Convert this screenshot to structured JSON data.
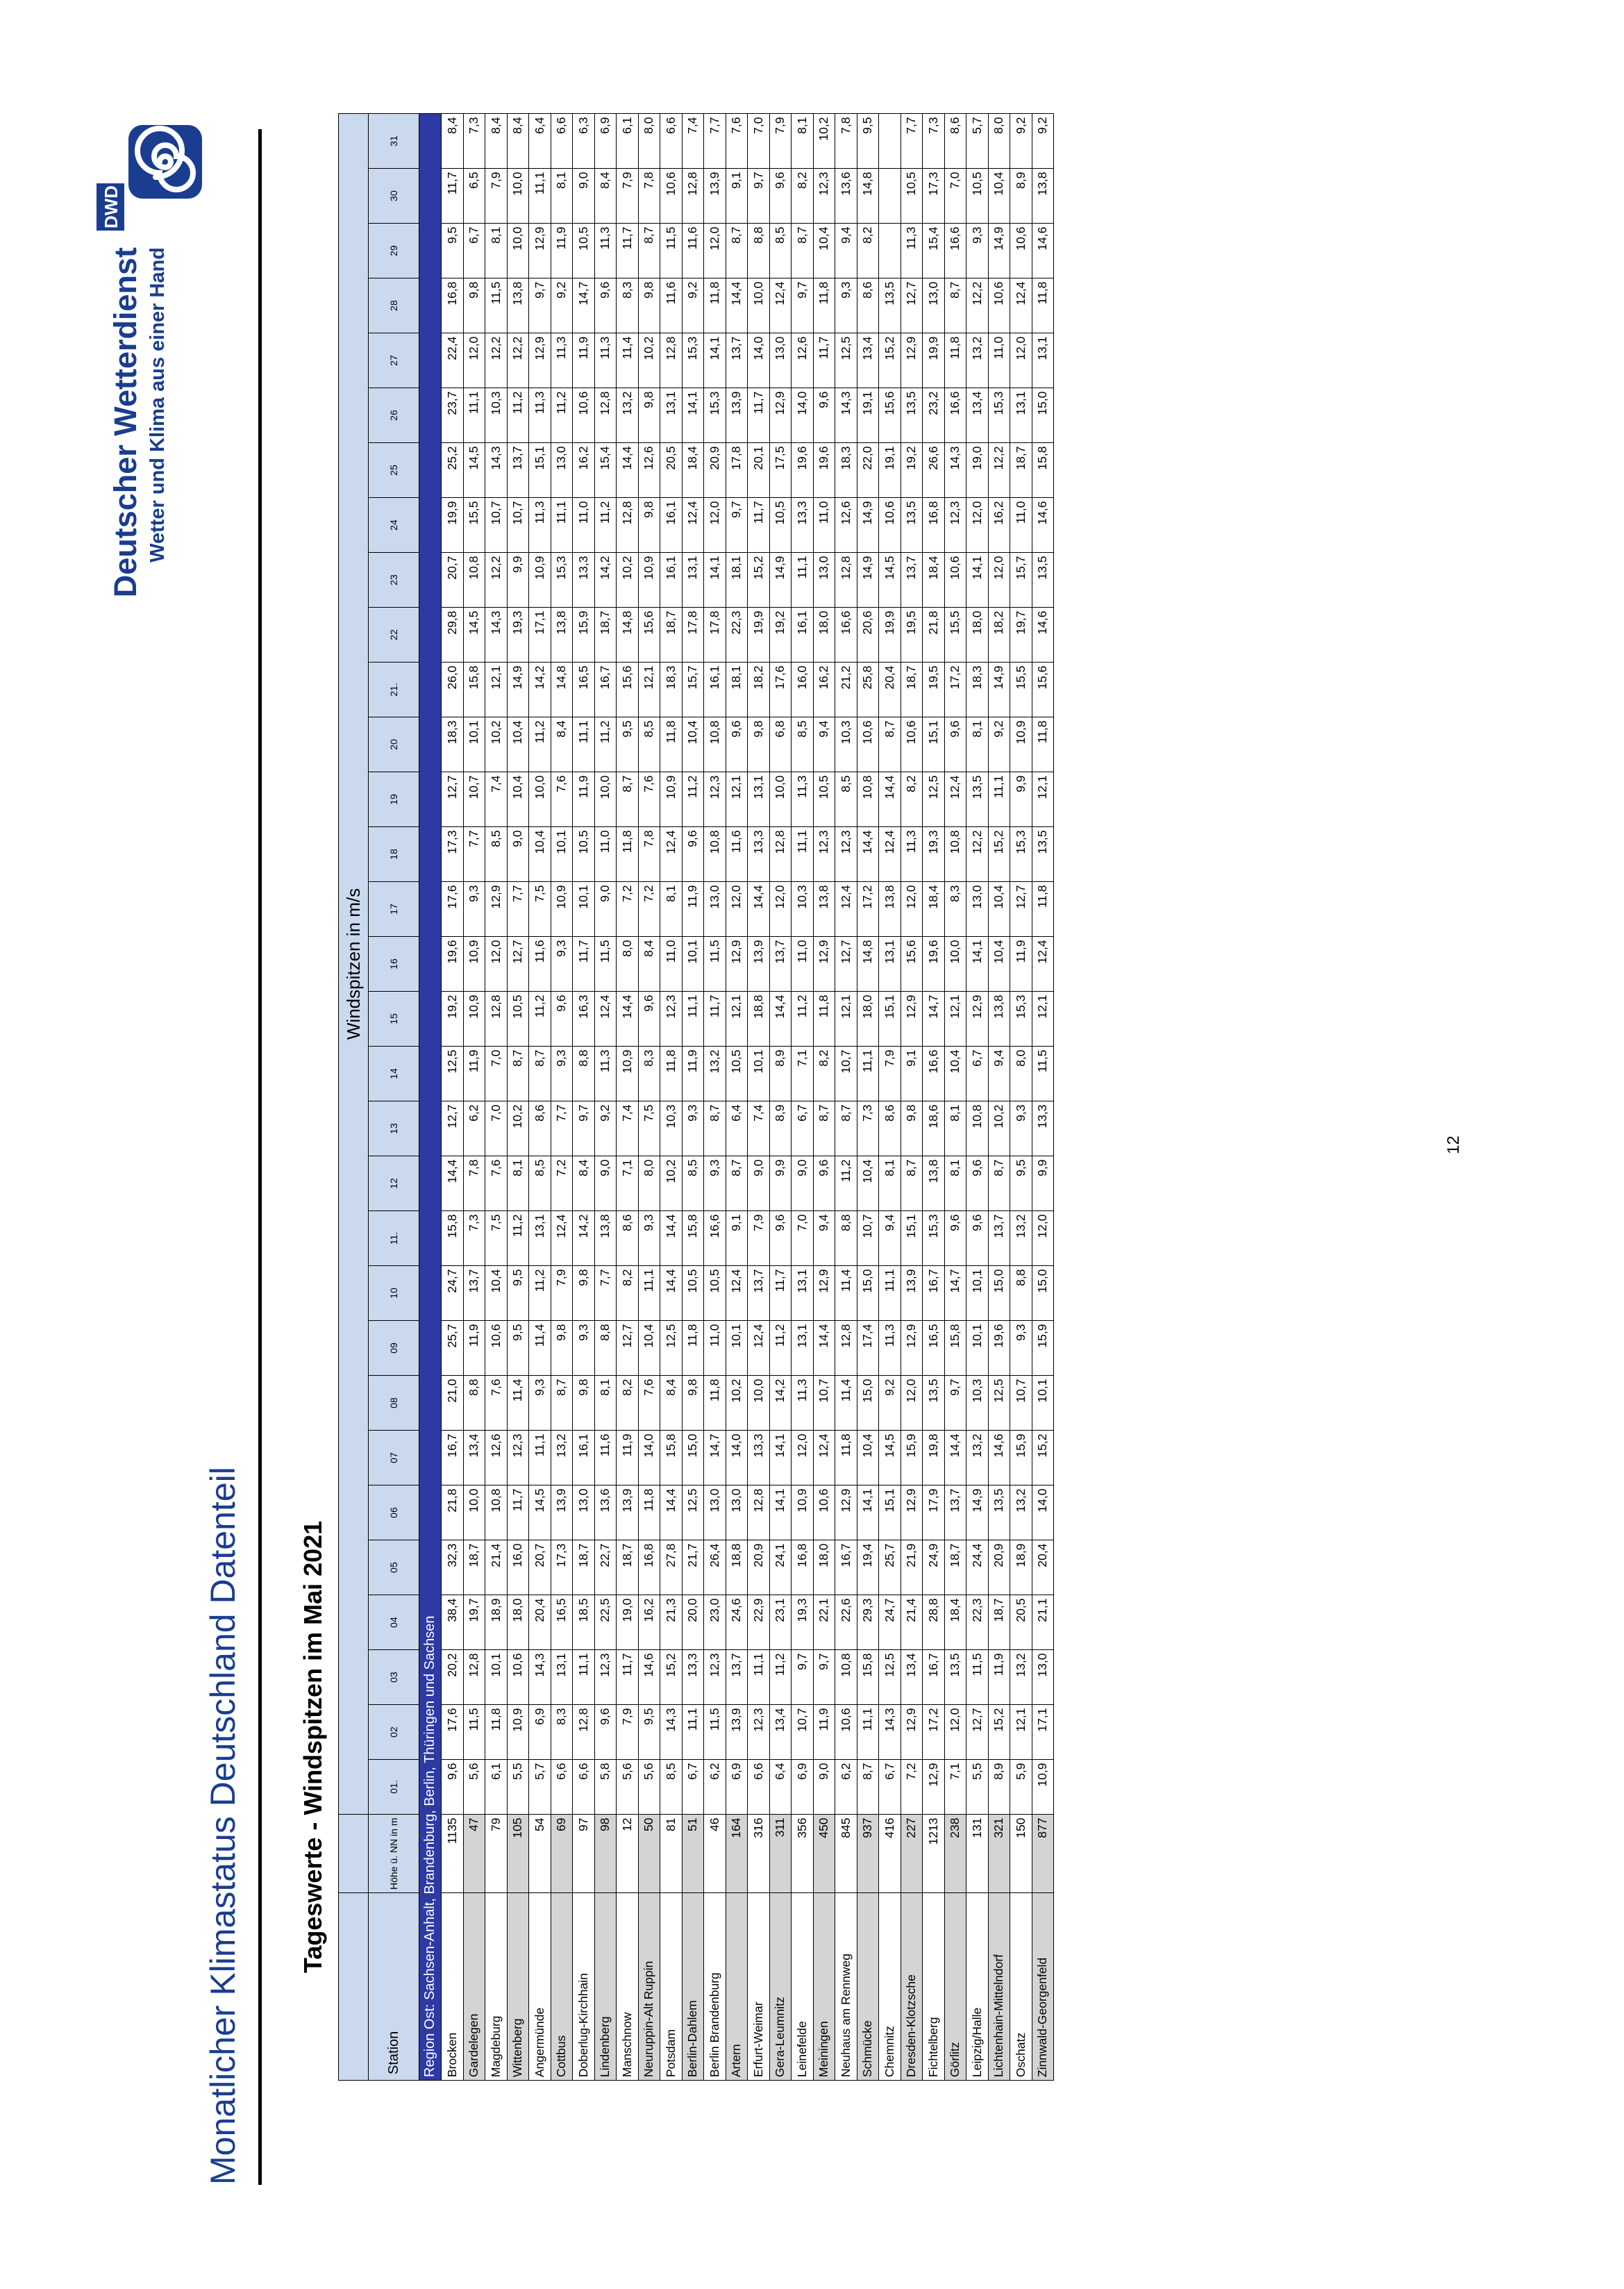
{
  "header": {
    "title": "Monatlicher Klimastatus Deutschland Datenteil",
    "brand_name": "Deutscher Wetterdienst",
    "brand_slogan": "Wetter und Klima aus einer Hand",
    "logo_text": "DWD",
    "brand_color": "#1a3d8f"
  },
  "table_heading": "Tageswerte - Windspitzen im Mai 2021",
  "page_number": "12",
  "table": {
    "group_header": "Windspitzen in m/s",
    "station_label": "Station",
    "height_label": "Höhe ü. NN in m",
    "day_labels": [
      "01.",
      "02",
      "03",
      "04",
      "05",
      "06",
      "07",
      "08",
      "09",
      "10",
      "11.",
      "12",
      "13",
      "14",
      "15",
      "16",
      "17",
      "18",
      "19",
      "20",
      "21.",
      "22",
      "23",
      "24",
      "25",
      "26",
      "27",
      "28",
      "29",
      "30",
      "31"
    ],
    "region": "Region Ost: Sachsen-Anhalt, Brandenburg, Berlin, Thüringen und Sachsen",
    "region_color": "#2e3aa3",
    "rows": [
      {
        "station": "Brocken",
        "height": "1135",
        "values": [
          "9,6",
          "17,6",
          "20,2",
          "38,4",
          "32,3",
          "21,8",
          "16,7",
          "21,0",
          "25,7",
          "24,7",
          "15,8",
          "14,4",
          "12,7",
          "12,5",
          "19,2",
          "19,6",
          "17,6",
          "17,3",
          "12,7",
          "18,3",
          "26,0",
          "29,8",
          "20,7",
          "19,9",
          "25,2",
          "23,7",
          "22,4",
          "16,8",
          "9,5",
          "11,7",
          "8,4"
        ]
      },
      {
        "station": "Gardelegen",
        "height": "47",
        "values": [
          "5,6",
          "11,5",
          "12,8",
          "19,7",
          "18,7",
          "10,0",
          "13,4",
          "8,8",
          "11,9",
          "13,7",
          "7,3",
          "7,8",
          "6,2",
          "11,9",
          "10,9",
          "10,9",
          "9,3",
          "7,7",
          "10,7",
          "10,1",
          "15,8",
          "14,5",
          "10,8",
          "15,5",
          "14,5",
          "11,1",
          "12,0",
          "9,8",
          "6,7",
          "6,5",
          "7,3"
        ]
      },
      {
        "station": "Magdeburg",
        "height": "79",
        "values": [
          "6,1",
          "11,8",
          "10,1",
          "18,9",
          "21,4",
          "10,8",
          "12,6",
          "7,6",
          "10,6",
          "10,4",
          "7,5",
          "7,6",
          "7,0",
          "7,0",
          "12,8",
          "12,0",
          "12,9",
          "8,5",
          "7,4",
          "10,2",
          "12,1",
          "14,3",
          "12,2",
          "10,7",
          "14,3",
          "10,3",
          "12,2",
          "11,5",
          "8,1",
          "7,9",
          "8,4"
        ]
      },
      {
        "station": "Wittenberg",
        "height": "105",
        "values": [
          "5,5",
          "10,9",
          "10,6",
          "18,0",
          "16,0",
          "11,7",
          "12,3",
          "11,4",
          "9,5",
          "9,5",
          "11,2",
          "8,1",
          "10,2",
          "8,7",
          "10,5",
          "12,7",
          "7,7",
          "9,0",
          "10,4",
          "10,4",
          "14,9",
          "19,3",
          "9,9",
          "10,7",
          "13,7",
          "11,2",
          "12,2",
          "13,8",
          "10,0",
          "10,0",
          "8,4"
        ]
      },
      {
        "station": "Angermünde",
        "height": "54",
        "values": [
          "5,7",
          "6,9",
          "14,3",
          "20,4",
          "20,7",
          "14,5",
          "11,1",
          "9,3",
          "11,4",
          "11,2",
          "13,1",
          "8,5",
          "8,6",
          "8,7",
          "11,2",
          "11,6",
          "7,5",
          "10,4",
          "10,0",
          "11,2",
          "14,2",
          "17,1",
          "10,9",
          "11,3",
          "15,1",
          "11,3",
          "12,9",
          "9,7",
          "12,9",
          "11,1",
          "6,4"
        ]
      },
      {
        "station": "Cottbus",
        "height": "69",
        "values": [
          "6,6",
          "8,3",
          "13,1",
          "16,5",
          "17,3",
          "13,9",
          "13,2",
          "8,7",
          "9,8",
          "7,9",
          "12,4",
          "7,2",
          "7,7",
          "9,3",
          "9,6",
          "9,3",
          "10,9",
          "10,1",
          "7,6",
          "8,4",
          "14,8",
          "13,8",
          "15,3",
          "11,1",
          "13,0",
          "11,2",
          "11,3",
          "9,2",
          "11,9",
          "8,1",
          "6,6"
        ]
      },
      {
        "station": "Doberlug-Kirchhain",
        "height": "97",
        "values": [
          "6,6",
          "12,8",
          "11,1",
          "18,5",
          "18,7",
          "13,0",
          "16,1",
          "9,8",
          "9,3",
          "9,8",
          "14,2",
          "8,4",
          "9,7",
          "8,8",
          "16,3",
          "11,7",
          "10,1",
          "10,5",
          "11,9",
          "11,1",
          "16,5",
          "15,9",
          "13,3",
          "11,0",
          "16,2",
          "10,6",
          "11,9",
          "14,7",
          "10,5",
          "9,0",
          "6,3"
        ]
      },
      {
        "station": "Lindenberg",
        "height": "98",
        "values": [
          "5,8",
          "9,6",
          "12,3",
          "22,5",
          "22,7",
          "13,6",
          "11,6",
          "8,1",
          "8,8",
          "7,7",
          "13,8",
          "9,0",
          "9,2",
          "11,3",
          "12,4",
          "11,5",
          "9,0",
          "11,0",
          "10,0",
          "11,2",
          "16,7",
          "18,7",
          "14,2",
          "11,2",
          "15,4",
          "12,8",
          "11,3",
          "9,6",
          "11,3",
          "8,4",
          "6,9"
        ]
      },
      {
        "station": "Manschnow",
        "height": "12",
        "values": [
          "5,6",
          "7,9",
          "11,7",
          "19,0",
          "18,7",
          "13,9",
          "11,9",
          "8,2",
          "12,7",
          "8,2",
          "8,6",
          "7,1",
          "7,4",
          "10,9",
          "14,4",
          "8,0",
          "7,2",
          "11,8",
          "8,7",
          "9,5",
          "15,6",
          "14,8",
          "10,2",
          "12,8",
          "14,4",
          "13,2",
          "11,4",
          "8,3",
          "11,7",
          "7,9",
          "6,1"
        ]
      },
      {
        "station": "Neuruppin-Alt Ruppin",
        "height": "50",
        "values": [
          "5,6",
          "9,5",
          "14,6",
          "16,2",
          "16,8",
          "11,8",
          "14,0",
          "7,6",
          "10,4",
          "11,1",
          "9,3",
          "8,0",
          "7,5",
          "8,3",
          "9,6",
          "8,4",
          "7,2",
          "7,8",
          "7,6",
          "8,5",
          "12,1",
          "15,6",
          "10,9",
          "9,8",
          "12,6",
          "9,8",
          "10,2",
          "9,8",
          "8,7",
          "7,8",
          "8,0"
        ]
      },
      {
        "station": "Potsdam",
        "height": "81",
        "values": [
          "8,5",
          "14,3",
          "15,2",
          "21,3",
          "27,8",
          "14,4",
          "15,8",
          "8,4",
          "12,5",
          "14,4",
          "14,4",
          "10,2",
          "10,3",
          "11,8",
          "12,3",
          "11,0",
          "8,1",
          "12,4",
          "10,9",
          "11,8",
          "18,3",
          "18,7",
          "16,1",
          "16,1",
          "20,5",
          "13,1",
          "12,8",
          "11,6",
          "11,5",
          "10,6",
          "6,6"
        ]
      },
      {
        "station": "Berlin-Dahlem",
        "height": "51",
        "values": [
          "6,7",
          "11,1",
          "13,3",
          "20,0",
          "21,7",
          "12,5",
          "15,0",
          "9,8",
          "11,8",
          "10,5",
          "15,8",
          "8,5",
          "9,3",
          "11,9",
          "11,1",
          "10,1",
          "11,9",
          "9,6",
          "11,2",
          "10,4",
          "15,7",
          "17,8",
          "13,1",
          "12,4",
          "18,4",
          "14,1",
          "15,3",
          "9,2",
          "11,6",
          "12,8",
          "7,4"
        ]
      },
      {
        "station": "Berlin Brandenburg",
        "height": "46",
        "values": [
          "6,2",
          "11,5",
          "12,3",
          "23,0",
          "26,4",
          "13,0",
          "14,7",
          "11,8",
          "11,0",
          "10,5",
          "16,6",
          "9,3",
          "8,7",
          "13,2",
          "11,7",
          "11,5",
          "13,0",
          "10,8",
          "12,3",
          "10,8",
          "16,1",
          "17,8",
          "14,1",
          "12,0",
          "20,9",
          "15,3",
          "14,1",
          "11,8",
          "12,0",
          "13,9",
          "7,7"
        ]
      },
      {
        "station": "Artern",
        "height": "164",
        "values": [
          "6,9",
          "13,9",
          "13,7",
          "24,6",
          "18,8",
          "13,0",
          "14,0",
          "10,2",
          "10,1",
          "12,4",
          "9,1",
          "8,7",
          "6,4",
          "10,5",
          "12,1",
          "12,9",
          "12,0",
          "11,6",
          "12,1",
          "9,6",
          "18,1",
          "22,3",
          "18,1",
          "9,7",
          "17,8",
          "13,9",
          "13,7",
          "14,4",
          "8,7",
          "9,1",
          "7,6"
        ]
      },
      {
        "station": "Erfurt-Weimar",
        "height": "316",
        "values": [
          "6,6",
          "12,3",
          "11,1",
          "22,9",
          "20,9",
          "12,8",
          "13,3",
          "10,0",
          "12,4",
          "13,7",
          "7,9",
          "9,0",
          "7,4",
          "10,1",
          "18,8",
          "13,9",
          "14,4",
          "13,3",
          "13,1",
          "9,8",
          "18,2",
          "19,9",
          "15,2",
          "11,7",
          "20,1",
          "11,7",
          "14,0",
          "10,0",
          "8,8",
          "9,7",
          "7,0"
        ]
      },
      {
        "station": "Gera-Leumnitz",
        "height": "311",
        "values": [
          "6,4",
          "13,4",
          "11,2",
          "23,1",
          "24,1",
          "14,1",
          "14,1",
          "14,2",
          "11,2",
          "11,7",
          "9,6",
          "9,9",
          "8,9",
          "8,9",
          "14,4",
          "13,7",
          "12,0",
          "12,8",
          "10,0",
          "6,8",
          "17,6",
          "19,2",
          "14,9",
          "10,5",
          "17,5",
          "12,9",
          "13,0",
          "12,4",
          "8,5",
          "9,6",
          "7,9"
        ]
      },
      {
        "station": "Leinefelde",
        "height": "356",
        "values": [
          "6,9",
          "10,7",
          "9,7",
          "19,3",
          "16,8",
          "10,9",
          "12,0",
          "11,3",
          "13,1",
          "13,1",
          "7,0",
          "9,0",
          "6,7",
          "7,1",
          "11,2",
          "11,0",
          "10,3",
          "11,1",
          "11,3",
          "8,5",
          "16,0",
          "16,1",
          "11,1",
          "13,3",
          "19,6",
          "14,0",
          "12,6",
          "9,7",
          "8,7",
          "8,2",
          "8,1"
        ]
      },
      {
        "station": "Meiningen",
        "height": "450",
        "values": [
          "9,0",
          "11,9",
          "9,7",
          "22,1",
          "18,0",
          "10,6",
          "12,4",
          "10,7",
          "14,4",
          "12,9",
          "9,4",
          "9,6",
          "8,7",
          "8,2",
          "11,8",
          "12,9",
          "13,8",
          "12,3",
          "10,5",
          "9,4",
          "16,2",
          "18,0",
          "13,0",
          "11,0",
          "19,6",
          "9,6",
          "11,7",
          "11,8",
          "10,4",
          "12,3",
          "10,2"
        ]
      },
      {
        "station": "Neuhaus am Rennweg",
        "height": "845",
        "values": [
          "6,2",
          "10,6",
          "10,8",
          "22,6",
          "16,7",
          "12,9",
          "11,8",
          "11,4",
          "12,8",
          "11,4",
          "8,8",
          "11,2",
          "8,7",
          "10,7",
          "12,1",
          "12,7",
          "12,4",
          "12,3",
          "8,5",
          "10,3",
          "21,2",
          "16,6",
          "12,8",
          "12,6",
          "18,3",
          "14,3",
          "12,5",
          "9,3",
          "9,4",
          "13,6",
          "7,8"
        ]
      },
      {
        "station": "Schmücke",
        "height": "937",
        "values": [
          "8,7",
          "11,1",
          "15,8",
          "29,3",
          "19,4",
          "14,1",
          "10,4",
          "15,0",
          "17,4",
          "15,0",
          "10,7",
          "10,4",
          "7,3",
          "11,1",
          "18,0",
          "14,8",
          "17,2",
          "14,4",
          "10,8",
          "10,6",
          "25,8",
          "20,6",
          "14,9",
          "14,9",
          "22,0",
          "19,1",
          "13,4",
          "8,6",
          "8,2",
          "14,8",
          "9,5"
        ]
      },
      {
        "station": "Chemnitz",
        "height": "416",
        "values": [
          "6,7",
          "14,3",
          "12,5",
          "24,7",
          "25,7",
          "15,1",
          "14,5",
          "9,2",
          "11,3",
          "11,1",
          "9,4",
          "8,1",
          "8,6",
          "7,9",
          "15,1",
          "13,1",
          "13,8",
          "12,4",
          "14,4",
          "8,7",
          "20,4",
          "19,9",
          "14,5",
          "10,6",
          "19,1",
          "15,6",
          "15,2",
          "13,5",
          "",
          "",
          ""
        ]
      },
      {
        "station": "Dresden-Klotzsche",
        "height": "227",
        "values": [
          "7,2",
          "12,9",
          "13,4",
          "21,4",
          "21,9",
          "12,9",
          "15,9",
          "12,0",
          "12,9",
          "13,9",
          "15,1",
          "8,7",
          "9,8",
          "9,1",
          "12,9",
          "15,6",
          "12,0",
          "11,3",
          "8,2",
          "10,6",
          "18,7",
          "19,5",
          "13,7",
          "13,5",
          "19,2",
          "13,5",
          "12,9",
          "12,7",
          "11,3",
          "10,5",
          "7,7"
        ]
      },
      {
        "station": "Fichtelberg",
        "height": "1213",
        "values": [
          "12,9",
          "17,2",
          "16,7",
          "28,8",
          "24,9",
          "17,9",
          "19,8",
          "13,5",
          "16,5",
          "16,7",
          "15,3",
          "13,8",
          "18,6",
          "16,6",
          "14,7",
          "19,6",
          "18,4",
          "19,3",
          "12,5",
          "15,1",
          "19,5",
          "21,8",
          "18,4",
          "16,8",
          "26,6",
          "23,2",
          "19,9",
          "13,0",
          "15,4",
          "17,3",
          "7,3"
        ]
      },
      {
        "station": "Görlitz",
        "height": "238",
        "values": [
          "7,1",
          "12,0",
          "13,5",
          "18,4",
          "18,7",
          "13,7",
          "14,4",
          "9,7",
          "15,8",
          "14,7",
          "9,6",
          "8,1",
          "8,1",
          "10,4",
          "12,1",
          "10,0",
          "8,3",
          "10,8",
          "12,4",
          "9,6",
          "17,2",
          "15,5",
          "10,6",
          "12,3",
          "14,3",
          "16,6",
          "11,8",
          "8,7",
          "16,6",
          "7,0",
          "8,6"
        ]
      },
      {
        "station": "Leipzig/Halle",
        "height": "131",
        "values": [
          "5,5",
          "12,7",
          "11,5",
          "22,3",
          "24,4",
          "14,9",
          "13,2",
          "10,3",
          "10,1",
          "10,1",
          "9,6",
          "9,6",
          "10,8",
          "6,7",
          "12,9",
          "14,1",
          "13,0",
          "12,2",
          "13,5",
          "8,1",
          "18,3",
          "18,0",
          "14,1",
          "12,0",
          "19,0",
          "13,4",
          "13,2",
          "12,2",
          "9,3",
          "10,5",
          "5,7"
        ]
      },
      {
        "station": "Lichtenhain-Mittelndorf",
        "height": "321",
        "values": [
          "8,9",
          "15,2",
          "11,9",
          "18,7",
          "20,9",
          "13,5",
          "14,6",
          "12,5",
          "19,6",
          "15,0",
          "13,7",
          "8,7",
          "10,2",
          "9,4",
          "13,8",
          "10,4",
          "10,4",
          "15,2",
          "11,1",
          "9,2",
          "14,9",
          "18,2",
          "12,0",
          "16,2",
          "12,2",
          "15,3",
          "11,0",
          "10,6",
          "14,9",
          "10,4",
          "8,0"
        ]
      },
      {
        "station": "Oschatz",
        "height": "150",
        "values": [
          "5,9",
          "12,1",
          "13,2",
          "20,5",
          "18,9",
          "13,2",
          "15,9",
          "10,7",
          "9,3",
          "8,8",
          "13,2",
          "9,5",
          "9,3",
          "8,0",
          "15,3",
          "11,9",
          "12,7",
          "15,3",
          "9,9",
          "10,9",
          "15,5",
          "19,7",
          "15,7",
          "11,0",
          "18,7",
          "13,1",
          "12,0",
          "12,4",
          "10,6",
          "8,9",
          "9,2"
        ]
      },
      {
        "station": "Zinnwald-Georgenfeld",
        "height": "877",
        "values": [
          "10,9",
          "17,1",
          "13,0",
          "21,1",
          "20,4",
          "14,0",
          "15,2",
          "10,1",
          "15,9",
          "15,0",
          "12,0",
          "9,9",
          "13,3",
          "11,5",
          "12,1",
          "12,4",
          "11,8",
          "13,5",
          "12,1",
          "11,8",
          "15,6",
          "14,6",
          "13,5",
          "14,6",
          "15,8",
          "15,0",
          "13,1",
          "11,8",
          "14,6",
          "13,8",
          "9,2"
        ]
      }
    ]
  }
}
